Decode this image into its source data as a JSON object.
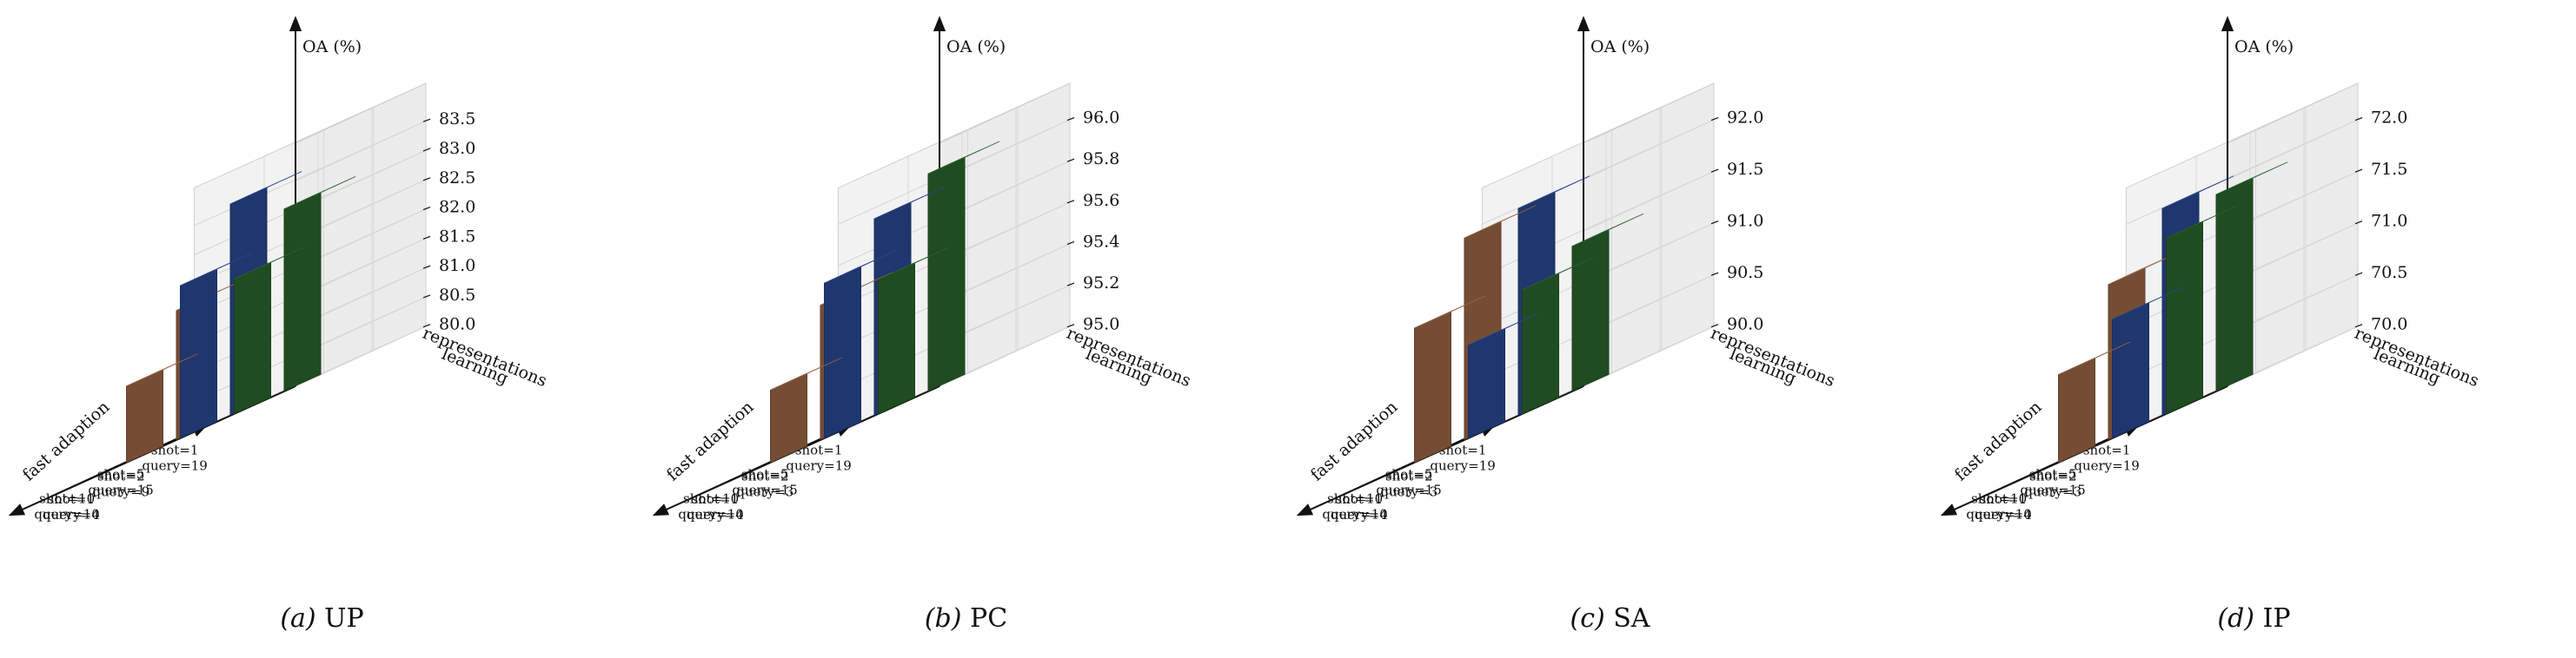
{
  "colors": {
    "green": "#3a8a3e",
    "blue": "#3a63c8",
    "orange": "#d48c5e",
    "pane": "#f2f2f2",
    "grid": "#d8d8d8",
    "axis": "#111111"
  },
  "chart_data": [
    {
      "type": "bar",
      "panel_label": "(a)",
      "title": "UP",
      "zlabel": "OA (%)",
      "xlabel": "fast adaption",
      "ylabel_line1": "representations",
      "ylabel_line2": "learning",
      "x_categories": [
        {
          "line1": "shot=1",
          "line2": "query=19"
        },
        {
          "line1": "shot=5",
          "line2": "query=15"
        },
        {
          "line1": "shot=10",
          "line2": "query=10"
        }
      ],
      "y_categories": [
        {
          "line1": "shot=1",
          "line2": "query=4"
        },
        {
          "line1": "shot=2",
          "line2": "query=9"
        }
      ],
      "zlim": [
        80.0,
        83.7
      ],
      "zticks": [
        "80.0",
        "80.5",
        "81.0",
        "81.5",
        "82.0",
        "82.5",
        "83.0",
        "83.5"
      ],
      "bars": [
        {
          "x": 0,
          "y": 0,
          "value": 82.3,
          "color": "green"
        },
        {
          "x": 1,
          "y": 0,
          "value": 82.6,
          "color": "blue"
        },
        {
          "x": 2,
          "y": 0,
          "value": 81.3,
          "color": "orange"
        },
        {
          "x": 0,
          "y": 1,
          "value": 83.1,
          "color": "green"
        },
        {
          "x": 1,
          "y": 1,
          "value": 83.6,
          "color": "blue"
        },
        {
          "x": 2,
          "y": 1,
          "value": 82.2,
          "color": "orange"
        }
      ]
    },
    {
      "type": "bar",
      "panel_label": "(b)",
      "title": "PC",
      "zlabel": "OA (%)",
      "xlabel": "fast adaption",
      "ylabel_line1": "representations",
      "ylabel_line2": "learning",
      "x_categories": [
        {
          "line1": "shot=1",
          "line2": "query=19"
        },
        {
          "line1": "shot=5",
          "line2": "query=15"
        },
        {
          "line1": "shot=10",
          "line2": "query=10"
        }
      ],
      "y_categories": [
        {
          "line1": "shot=1",
          "line2": "query=4"
        },
        {
          "line1": "shot=2",
          "line2": "query=3"
        }
      ],
      "zlim": [
        95.0,
        96.05
      ],
      "zticks": [
        "95.0",
        "95.2",
        "95.4",
        "95.6",
        "95.8",
        "96.0"
      ],
      "bars": [
        {
          "x": 0,
          "y": 0,
          "value": 95.65,
          "color": "green"
        },
        {
          "x": 1,
          "y": 0,
          "value": 95.75,
          "color": "blue"
        },
        {
          "x": 2,
          "y": 0,
          "value": 95.35,
          "color": "orange"
        },
        {
          "x": 0,
          "y": 1,
          "value": 96.05,
          "color": "green"
        },
        {
          "x": 1,
          "y": 1,
          "value": 95.95,
          "color": "blue"
        },
        {
          "x": 2,
          "y": 1,
          "value": 95.65,
          "color": "orange"
        }
      ]
    },
    {
      "type": "bar",
      "panel_label": "(c)",
      "title": "SA",
      "zlabel": "OA (%)",
      "xlabel": "fast adaption",
      "ylabel_line1": "representations",
      "ylabel_line2": "learning",
      "x_categories": [
        {
          "line1": "shot=1",
          "line2": "query=19"
        },
        {
          "line1": "shot=5",
          "line2": "query=15"
        },
        {
          "line1": "shot=10",
          "line2": "query=10"
        }
      ],
      "y_categories": [
        {
          "line1": "shot=1",
          "line2": "query=4"
        },
        {
          "line1": "shot=2",
          "line2": "query=3"
        }
      ],
      "zlim": [
        90.0,
        92.1
      ],
      "zticks": [
        "90.0",
        "90.5",
        "91.0",
        "91.5",
        "92.0"
      ],
      "bars": [
        {
          "x": 0,
          "y": 0,
          "value": 91.2,
          "color": "green"
        },
        {
          "x": 1,
          "y": 0,
          "value": 90.9,
          "color": "blue"
        },
        {
          "x": 2,
          "y": 0,
          "value": 91.3,
          "color": "orange"
        },
        {
          "x": 0,
          "y": 1,
          "value": 91.4,
          "color": "green"
        },
        {
          "x": 1,
          "y": 1,
          "value": 92.0,
          "color": "blue"
        },
        {
          "x": 2,
          "y": 1,
          "value": 91.95,
          "color": "orange"
        }
      ]
    },
    {
      "type": "bar",
      "panel_label": "(d)",
      "title": "IP",
      "zlabel": "OA (%)",
      "xlabel": "fast adaption",
      "ylabel_line1": "representations",
      "ylabel_line2": "learning",
      "x_categories": [
        {
          "line1": "shot=1",
          "line2": "query=19"
        },
        {
          "line1": "shot=5",
          "line2": "query=15"
        },
        {
          "line1": "shot=10",
          "line2": "query=10"
        }
      ],
      "y_categories": [
        {
          "line1": "shot=1",
          "line2": "query=4"
        },
        {
          "line1": "shot=2",
          "line2": "query=3"
        }
      ],
      "zlim": [
        70.0,
        72.1
      ],
      "zticks": [
        "70.0",
        "70.5",
        "71.0",
        "71.5",
        "72.0"
      ],
      "bars": [
        {
          "x": 0,
          "y": 0,
          "value": 71.7,
          "color": "green"
        },
        {
          "x": 1,
          "y": 0,
          "value": 71.15,
          "color": "blue"
        },
        {
          "x": 2,
          "y": 0,
          "value": 70.85,
          "color": "orange"
        },
        {
          "x": 0,
          "y": 1,
          "value": 71.9,
          "color": "green"
        },
        {
          "x": 1,
          "y": 1,
          "value": 72.0,
          "color": "blue"
        },
        {
          "x": 2,
          "y": 1,
          "value": 71.5,
          "color": "orange"
        }
      ]
    }
  ]
}
